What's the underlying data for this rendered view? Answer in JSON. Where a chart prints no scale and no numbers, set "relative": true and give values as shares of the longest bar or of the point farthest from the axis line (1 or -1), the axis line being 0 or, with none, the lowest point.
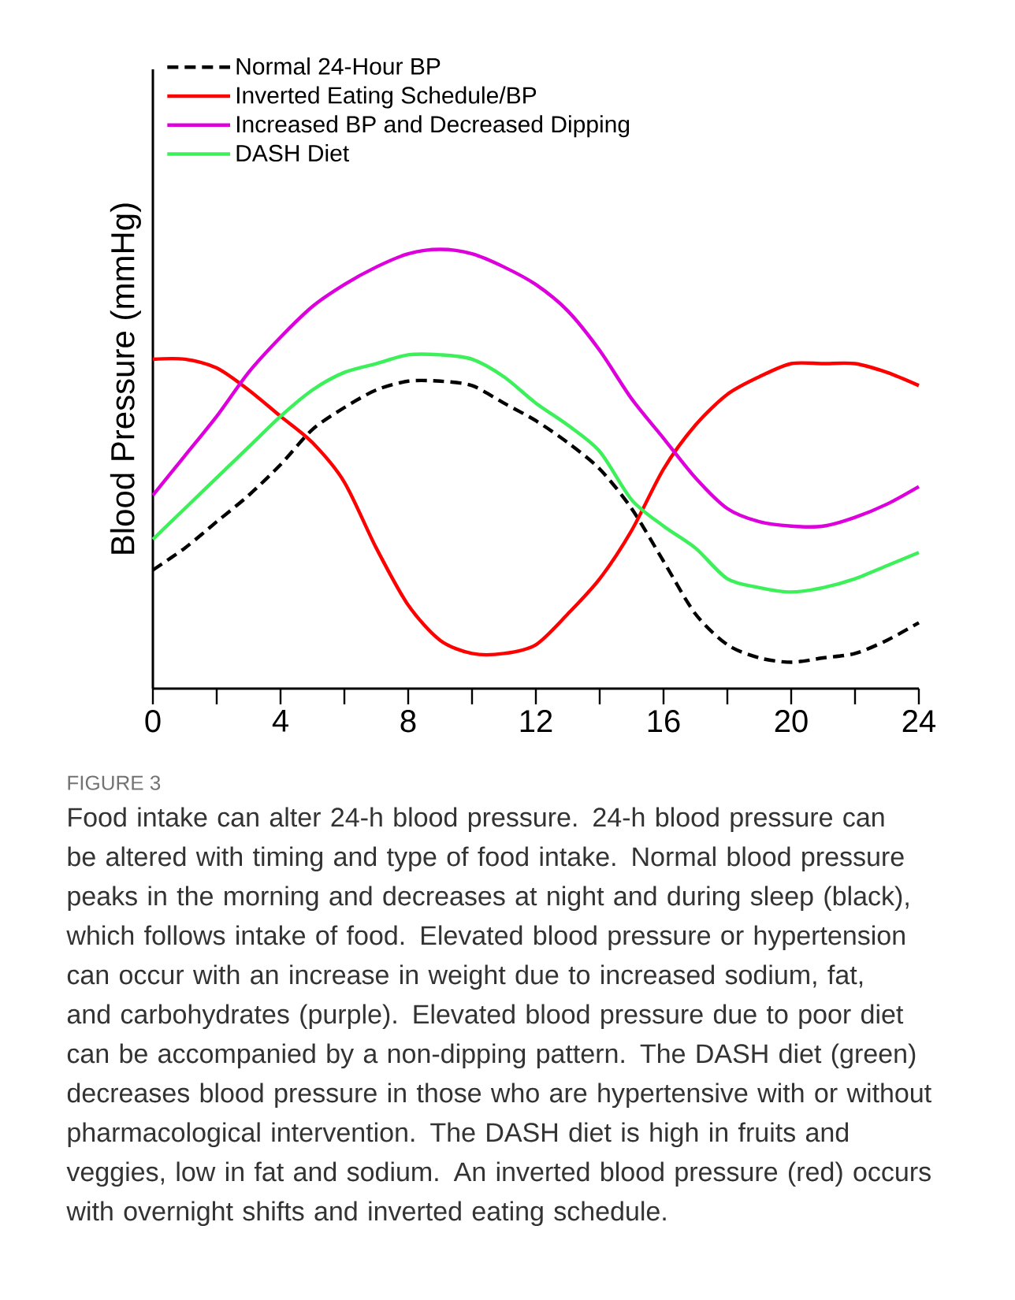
{
  "chart_data": {
    "type": "line",
    "ylabel": "Blood Pressure (mmHg)",
    "relative": true,
    "x": [
      0,
      1,
      2,
      3,
      4,
      5,
      6,
      7,
      8,
      9,
      10,
      11,
      12,
      13,
      14,
      15,
      16,
      17,
      18,
      19,
      20,
      21,
      22,
      23,
      24
    ],
    "xlim": [
      0,
      24
    ],
    "xticks": [
      0,
      {
        "value": 2,
        "label": null
      },
      4,
      {
        "value": 6,
        "label": null
      },
      8,
      {
        "value": 10,
        "label": null
      },
      12,
      {
        "value": 14,
        "label": null
      },
      16,
      {
        "value": 18,
        "label": null
      },
      20,
      {
        "value": 22,
        "label": null
      },
      24
    ],
    "legend": "top left",
    "grid": false,
    "marker": "none",
    "series": [
      {
        "name": "Normal 24-Hour BP",
        "color": "#000000",
        "line_style": "dashed",
        "values": [
          0.27,
          0.32,
          0.38,
          0.44,
          0.51,
          0.59,
          0.64,
          0.68,
          0.7,
          0.7,
          0.69,
          0.65,
          0.61,
          0.56,
          0.5,
          0.41,
          0.29,
          0.17,
          0.1,
          0.07,
          0.06,
          0.07,
          0.08,
          0.11,
          0.15
        ]
      },
      {
        "name": "Inverted Eating Schedule/BP",
        "color": "#ff0000",
        "line_style": "solid",
        "values": [
          0.75,
          0.75,
          0.73,
          0.68,
          0.62,
          0.56,
          0.47,
          0.32,
          0.19,
          0.11,
          0.08,
          0.08,
          0.1,
          0.17,
          0.25,
          0.36,
          0.5,
          0.6,
          0.67,
          0.71,
          0.74,
          0.74,
          0.74,
          0.72,
          0.69
        ]
      },
      {
        "name": "Increased BP and Decreased Dipping",
        "color": "#dd00dd",
        "line_style": "solid",
        "values": [
          0.44,
          0.53,
          0.62,
          0.72,
          0.8,
          0.87,
          0.92,
          0.96,
          0.99,
          1.0,
          0.99,
          0.96,
          0.92,
          0.86,
          0.77,
          0.66,
          0.57,
          0.48,
          0.41,
          0.38,
          0.37,
          0.37,
          0.39,
          0.42,
          0.46
        ]
      },
      {
        "name": "DASH Diet",
        "color": "#3cf05a",
        "line_style": "solid",
        "values": [
          0.34,
          0.41,
          0.48,
          0.55,
          0.62,
          0.68,
          0.72,
          0.74,
          0.76,
          0.76,
          0.75,
          0.71,
          0.65,
          0.6,
          0.54,
          0.43,
          0.37,
          0.32,
          0.25,
          0.23,
          0.22,
          0.23,
          0.25,
          0.28,
          0.31
        ]
      }
    ],
    "annotations": [
      "FIGURE 3",
      "Food intake can alter 24-h blood pressure. 24-h blood pressure can be altered with timing and type of food intake. Normal blood pressure peaks in the morning and decreases at night and during sleep (black), which follows intake of food. Elevated blood pressure or hypertension can occur with an increase in weight due to increased sodium, fat, and carbohydrates (purple). Elevated blood pressure due to poor diet can be accompanied by a non-dipping pattern. The DASH diet (green) decreases blood pressure in those who are hypertensive with or without pharmacological intervention. The DASH diet is high in fruits and veggies, low in fat and sodium. An inverted blood pressure (red) occurs with overnight shifts and inverted eating schedule."
    ]
  }
}
